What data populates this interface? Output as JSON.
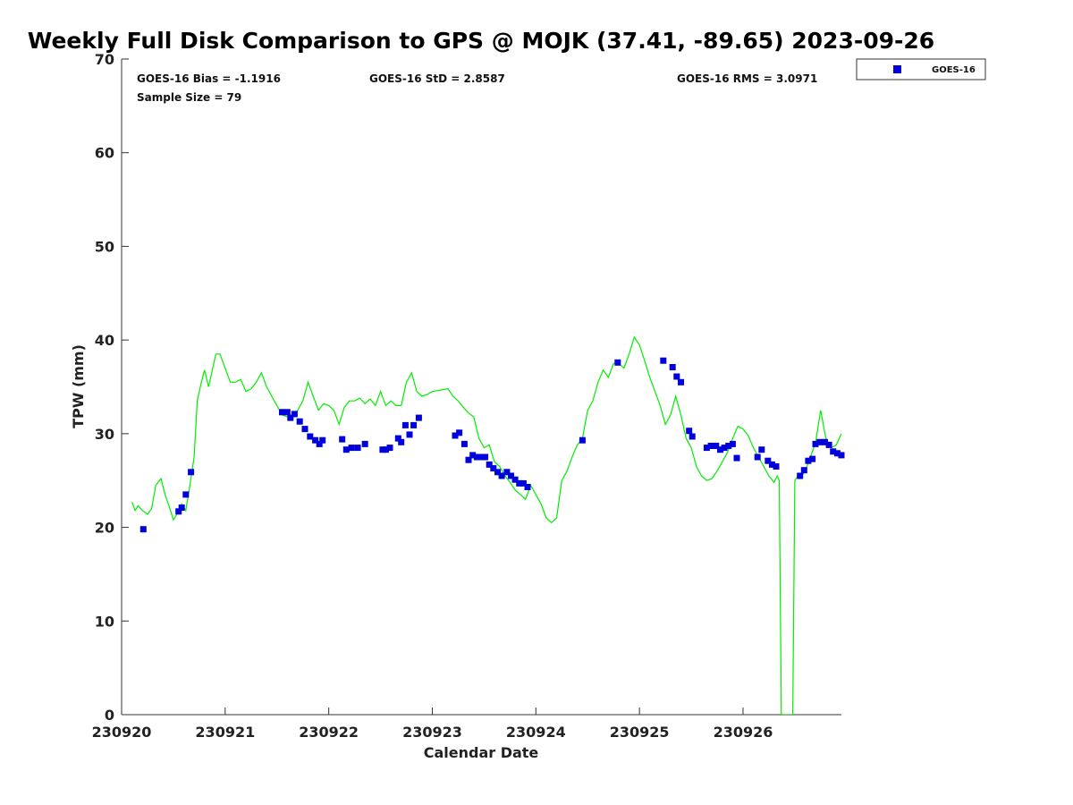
{
  "chart_data": {
    "type": "scatter",
    "title": "Weekly Full Disk Comparison to GPS @ MOJK (37.41, -89.65) 2023-09-26",
    "xlabel": "Calendar Date",
    "ylabel": "TPW (mm)",
    "xlim": [
      0,
      6.95
    ],
    "ylim": [
      0,
      70
    ],
    "x_ticks": [
      {
        "value": 0,
        "label": "230920"
      },
      {
        "value": 1,
        "label": "230921"
      },
      {
        "value": 2,
        "label": "230922"
      },
      {
        "value": 3,
        "label": "230923"
      },
      {
        "value": 4,
        "label": "230924"
      },
      {
        "value": 5,
        "label": "230925"
      },
      {
        "value": 6,
        "label": "230926"
      }
    ],
    "y_ticks": [
      0,
      10,
      20,
      30,
      40,
      50,
      60,
      70
    ],
    "y_tick_labels": [
      "0",
      "10",
      "20",
      "30",
      "40",
      "50",
      "60",
      "70"
    ],
    "stats": {
      "bias": "GOES-16 Bias = -1.1916",
      "std": "GOES-16 StD = 2.8587",
      "rms": "GOES-16 RMS = 3.0971",
      "sample": "Sample Size = 79"
    },
    "legend": {
      "position": "top-right",
      "label": "GOES-16",
      "color": "#0000dd"
    },
    "series": [
      {
        "name": "GOES-16",
        "kind": "scatter",
        "color": "#0000dd",
        "x": [
          0.21,
          0.55,
          0.58,
          0.62,
          0.67,
          1.55,
          1.6,
          1.63,
          1.67,
          1.72,
          1.77,
          1.82,
          1.87,
          1.91,
          1.94,
          2.13,
          2.17,
          2.22,
          2.28,
          2.35,
          2.52,
          2.55,
          2.59,
          2.67,
          2.7,
          2.74,
          2.78,
          2.82,
          2.87,
          3.22,
          3.26,
          3.31,
          3.35,
          3.39,
          3.43,
          3.47,
          3.51,
          3.55,
          3.59,
          3.63,
          3.67,
          3.72,
          3.76,
          3.8,
          3.84,
          3.88,
          3.92,
          4.45,
          4.79,
          5.23,
          5.32,
          5.36,
          5.4,
          5.48,
          5.51,
          5.65,
          5.69,
          5.74,
          5.78,
          5.82,
          5.86,
          5.9,
          5.94,
          6.14,
          6.18,
          6.24,
          6.28,
          6.32,
          6.55,
          6.59,
          6.63,
          6.67,
          6.7,
          6.74,
          6.79,
          6.83,
          6.87,
          6.91,
          6.95
        ],
        "y": [
          19.8,
          21.7,
          22.1,
          23.5,
          25.9,
          32.3,
          32.3,
          31.7,
          32.1,
          31.3,
          30.5,
          29.7,
          29.3,
          28.9,
          29.3,
          29.4,
          28.3,
          28.5,
          28.5,
          28.9,
          28.3,
          28.3,
          28.5,
          29.5,
          29.1,
          30.9,
          29.9,
          30.9,
          31.7,
          29.8,
          30.1,
          28.9,
          27.2,
          27.7,
          27.5,
          27.5,
          27.5,
          26.7,
          26.3,
          25.9,
          25.5,
          25.9,
          25.5,
          25.1,
          24.7,
          24.7,
          24.3,
          29.3,
          37.6,
          37.8,
          37.1,
          36.1,
          35.5,
          30.3,
          29.7,
          28.5,
          28.7,
          28.7,
          28.3,
          28.5,
          28.7,
          28.9,
          27.4,
          27.5,
          28.3,
          27.1,
          26.7,
          26.5,
          25.5,
          26.1,
          27.1,
          27.3,
          28.9,
          29.1,
          29.1,
          28.8,
          28.1,
          27.9,
          27.7
        ]
      },
      {
        "name": "GPS",
        "kind": "line",
        "color": "#00ee00",
        "x": [
          0.1,
          0.13,
          0.16,
          0.2,
          0.25,
          0.29,
          0.33,
          0.38,
          0.42,
          0.46,
          0.5,
          0.54,
          0.58,
          0.62,
          0.66,
          0.7,
          0.73,
          0.77,
          0.8,
          0.84,
          0.87,
          0.91,
          0.95,
          1.0,
          1.05,
          1.1,
          1.15,
          1.2,
          1.25,
          1.3,
          1.35,
          1.4,
          1.45,
          1.5,
          1.55,
          1.6,
          1.65,
          1.7,
          1.75,
          1.8,
          1.85,
          1.9,
          1.95,
          2.0,
          2.05,
          2.1,
          2.15,
          2.2,
          2.25,
          2.3,
          2.35,
          2.4,
          2.45,
          2.5,
          2.55,
          2.6,
          2.65,
          2.7,
          2.75,
          2.8,
          2.85,
          2.9,
          2.95,
          3.0,
          3.05,
          3.1,
          3.15,
          3.2,
          3.25,
          3.3,
          3.35,
          3.4,
          3.45,
          3.5,
          3.55,
          3.6,
          3.65,
          3.7,
          3.75,
          3.8,
          3.85,
          3.9,
          3.95,
          4.0,
          4.05,
          4.1,
          4.15,
          4.2,
          4.25,
          4.3,
          4.35,
          4.4,
          4.45,
          4.5,
          4.55,
          4.6,
          4.65,
          4.7,
          4.75,
          4.8,
          4.85,
          4.9,
          4.95,
          5.0,
          5.05,
          5.1,
          5.15,
          5.2,
          5.25,
          5.3,
          5.35,
          5.4,
          5.45,
          5.5,
          5.55,
          5.6,
          5.65,
          5.7,
          5.75,
          5.8,
          5.85,
          5.9,
          5.95,
          6.0,
          6.05,
          6.1,
          6.15,
          6.2,
          6.25,
          6.3,
          6.33,
          6.35,
          6.37,
          6.4,
          6.43,
          6.45,
          6.48,
          6.5,
          6.53,
          6.55,
          6.6,
          6.65,
          6.7,
          6.75,
          6.8,
          6.85,
          6.9,
          6.95
        ],
        "y": [
          22.7,
          21.8,
          22.3,
          21.8,
          21.4,
          22.0,
          24.5,
          25.2,
          23.5,
          22.2,
          20.8,
          21.5,
          22.5,
          21.8,
          24.5,
          27.5,
          33.5,
          35.5,
          36.8,
          35.0,
          36.5,
          38.5,
          38.5,
          37.0,
          35.5,
          35.5,
          35.8,
          34.5,
          34.8,
          35.5,
          36.5,
          35.0,
          34.0,
          33.0,
          32.0,
          31.8,
          32.0,
          32.5,
          33.5,
          35.5,
          34.0,
          32.5,
          33.2,
          33.0,
          32.5,
          31.0,
          32.8,
          33.5,
          33.5,
          33.8,
          33.2,
          33.7,
          33.0,
          34.5,
          33.0,
          33.5,
          33.0,
          33.0,
          35.5,
          36.5,
          34.5,
          34.0,
          34.2,
          34.5,
          34.6,
          34.7,
          34.8,
          34.0,
          33.5,
          32.8,
          32.2,
          31.8,
          29.5,
          28.5,
          28.8,
          27.0,
          26.5,
          25.5,
          24.8,
          24.0,
          23.5,
          23.0,
          24.5,
          23.5,
          22.5,
          21.0,
          20.5,
          21.0,
          25.0,
          26.0,
          27.5,
          28.8,
          29.5,
          32.5,
          33.5,
          35.5,
          36.8,
          36.0,
          37.5,
          37.5,
          37.0,
          38.5,
          40.3,
          39.5,
          37.8,
          36.0,
          34.5,
          33.0,
          31.0,
          32.0,
          34.0,
          32.0,
          29.5,
          28.5,
          26.5,
          25.5,
          25.0,
          25.2,
          26.0,
          27.0,
          28.0,
          29.5,
          30.8,
          30.5,
          29.8,
          28.5,
          27.5,
          26.5,
          25.5,
          24.8,
          25.5,
          25.0,
          0.0,
          0.0,
          0.0,
          0.0,
          0.0,
          25.0,
          25.5,
          25.2,
          26.0,
          27.5,
          29.0,
          32.5,
          29.5,
          28.5,
          28.8,
          30.0
        ]
      }
    ]
  }
}
